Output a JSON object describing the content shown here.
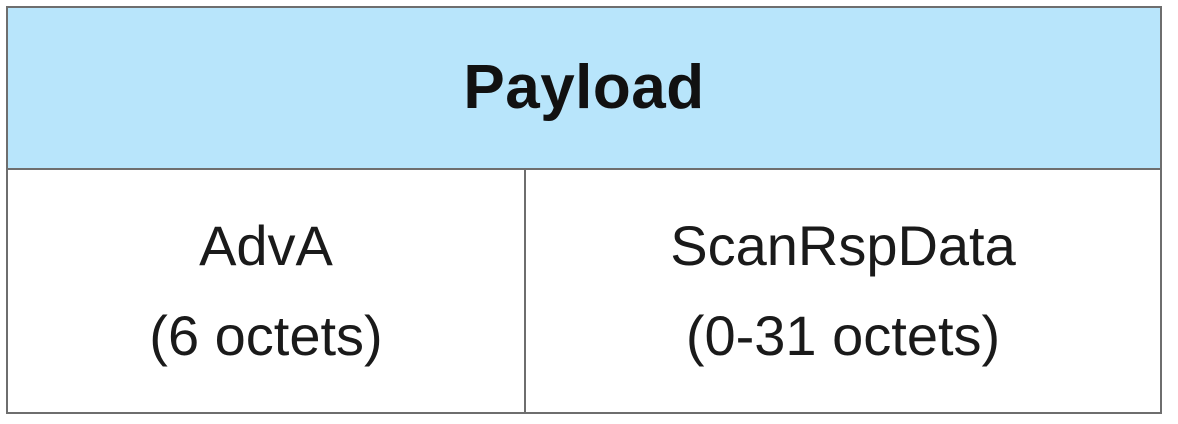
{
  "header": {
    "title": "Payload"
  },
  "fields": [
    {
      "name": "AdvA",
      "size": "(6 octets)"
    },
    {
      "name": "ScanRspData",
      "size": "(0-31 octets)"
    }
  ],
  "colors": {
    "header_bg": "#b8e5fb",
    "border": "#6e6e6e",
    "text": "#111111"
  }
}
